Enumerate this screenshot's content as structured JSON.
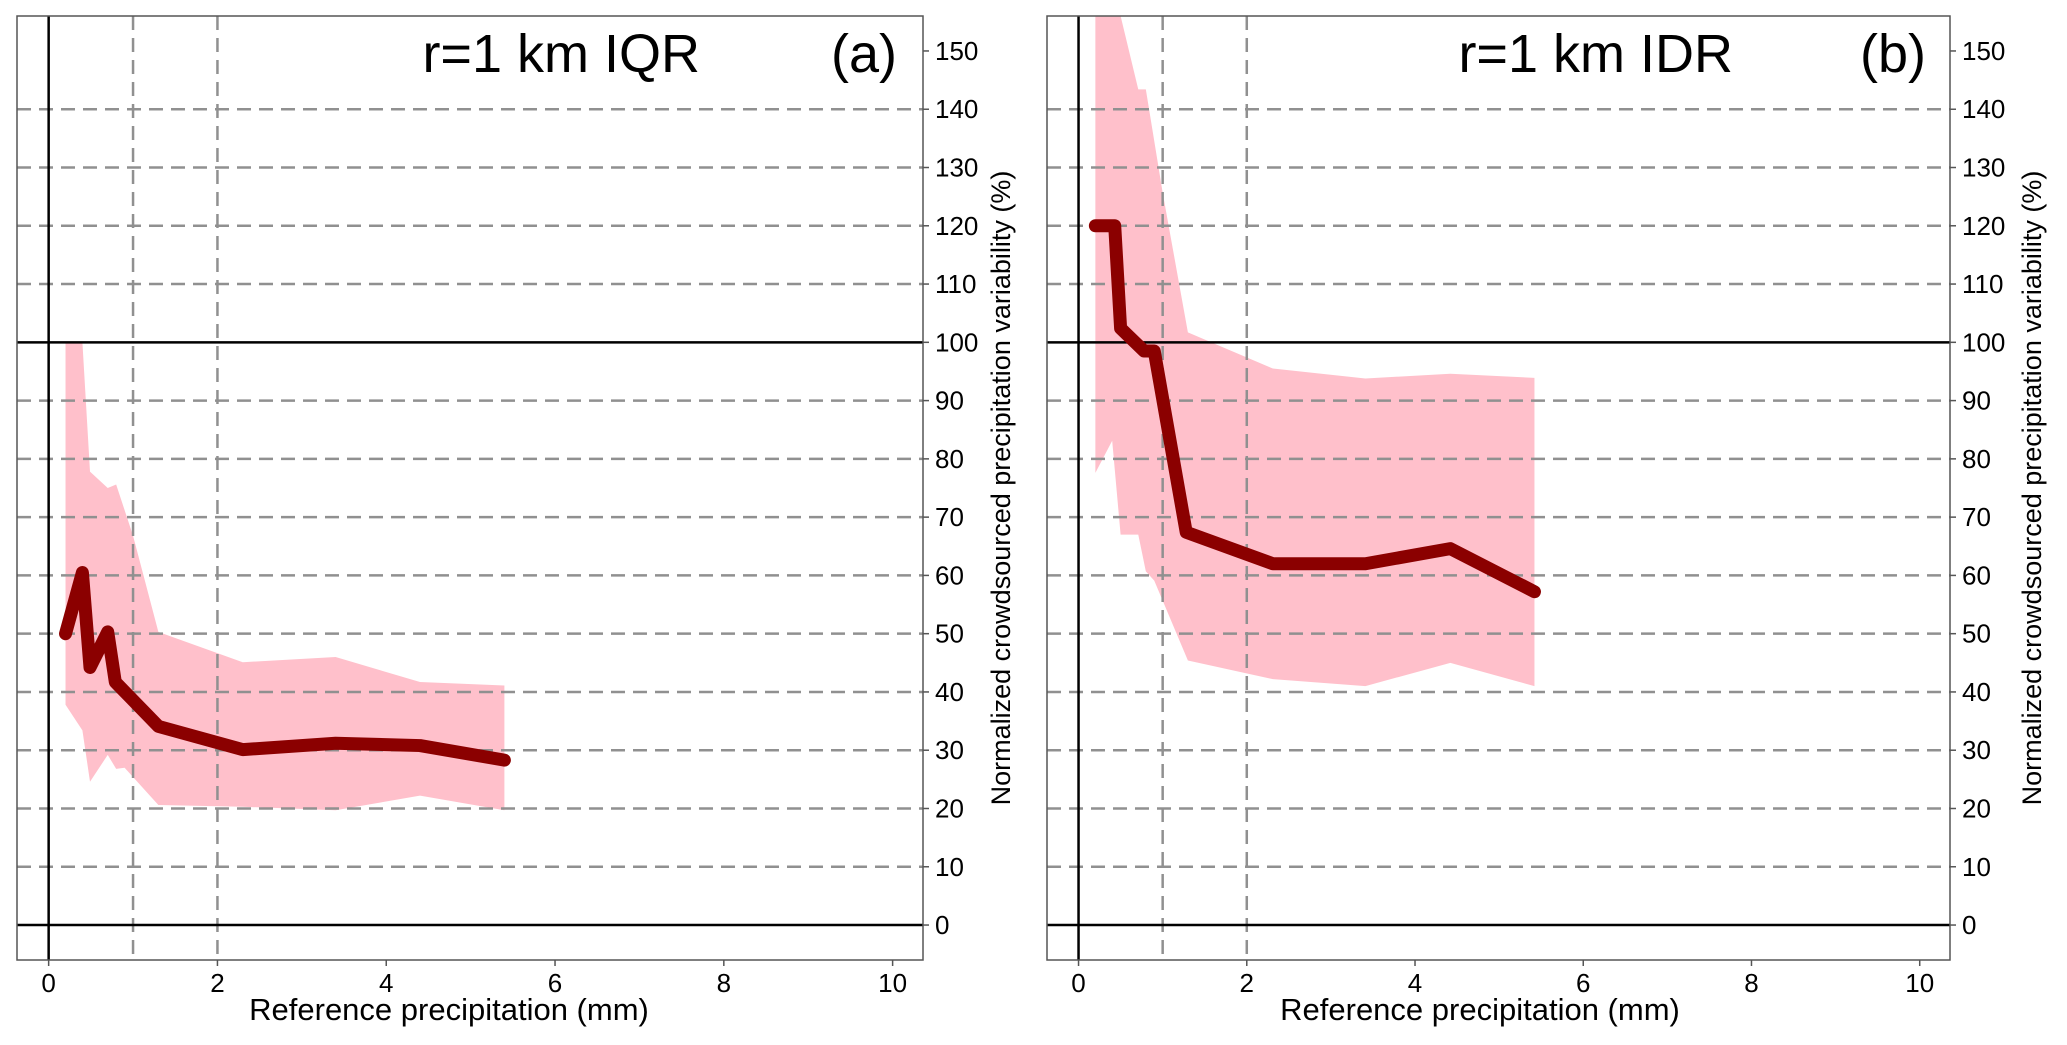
{
  "chart_data": [
    {
      "type": "line",
      "title": "r=1 km IQR",
      "panel_label": "(a)",
      "xlabel": "Reference precipitation (mm)",
      "ylabel": "Normalized crowdsourced precipitation variability (%)",
      "xlim": [
        -0.375,
        10.36
      ],
      "ylim": [
        -6,
        156
      ],
      "xticks": [
        0,
        2,
        4,
        6,
        8,
        10
      ],
      "yticks": [
        0,
        10,
        20,
        30,
        40,
        50,
        60,
        70,
        80,
        90,
        100,
        110,
        120,
        130,
        140,
        150
      ],
      "ygrid_dashed": [
        10,
        20,
        30,
        40,
        50,
        60,
        70,
        80,
        90,
        110,
        120,
        130,
        140
      ],
      "xgrid_dashed": [
        1,
        2
      ],
      "ref_lines": {
        "x": 0,
        "y": [
          0,
          100
        ]
      },
      "colors": {
        "line": "#8b0000",
        "band": "#ffc0cb",
        "grid": "#909090"
      },
      "median": {
        "x": [
          0.2,
          0.4,
          0.49,
          0.7,
          0.79,
          1.3,
          2.3,
          3.4,
          4.4,
          5.4
        ],
        "y": [
          50,
          60.5,
          44.2,
          50.3,
          41.7,
          34.1,
          30.1,
          31.2,
          30.8,
          28.3
        ]
      },
      "band_upper": {
        "x": [
          0.2,
          0.4,
          0.49,
          0.7,
          0.8,
          1.0,
          1.3,
          2.3,
          3.4,
          4.4,
          5.4
        ],
        "y": [
          100,
          100,
          77.8,
          75,
          75.6,
          66.8,
          50.3,
          45.1,
          46,
          41.7,
          41.1
        ]
      },
      "band_lower": {
        "x": [
          0.2,
          0.4,
          0.49,
          0.7,
          0.8,
          0.9,
          1.3,
          2.3,
          3.4,
          4.4,
          5.4
        ],
        "y": [
          37.8,
          33.4,
          24.6,
          29.2,
          26.8,
          27,
          20.6,
          20.3,
          19.7,
          22.2,
          19.7
        ]
      }
    },
    {
      "type": "line",
      "title": "r=1 km IDR",
      "panel_label": "(b)",
      "xlabel": "Reference precipitation (mm)",
      "ylabel": "Normalized crowdsourced precipitation variability (%)",
      "xlim": [
        -0.375,
        10.36
      ],
      "ylim": [
        -6,
        156
      ],
      "xticks": [
        0,
        2,
        4,
        6,
        8,
        10
      ],
      "yticks": [
        0,
        10,
        20,
        30,
        40,
        50,
        60,
        70,
        80,
        90,
        100,
        110,
        120,
        130,
        140,
        150
      ],
      "ygrid_dashed": [
        10,
        20,
        30,
        40,
        50,
        60,
        70,
        80,
        90,
        110,
        120,
        130,
        140
      ],
      "xgrid_dashed": [
        1,
        2
      ],
      "ref_lines": {
        "x": 0,
        "y": [
          0,
          100
        ]
      },
      "colors": {
        "line": "#8b0000",
        "band": "#ffc0cb",
        "grid": "#909090"
      },
      "median": {
        "x": [
          0.2,
          0.43,
          0.5,
          0.78,
          0.9,
          1.28,
          2.31,
          3.41,
          4.42,
          5.42
        ],
        "y": [
          120,
          120,
          102.4,
          98.5,
          98.5,
          67.4,
          62,
          62,
          64.6,
          57.2
        ]
      },
      "band_upper": {
        "x": [
          0.2,
          0.5,
          0.71,
          0.8,
          1.0,
          1.3,
          2.31,
          3.41,
          4.42,
          5.42
        ],
        "y": [
          156,
          156,
          143.4,
          143.4,
          125.7,
          101.7,
          95.5,
          93.8,
          94.6,
          93.9
        ]
      },
      "band_lower": {
        "x": [
          0.2,
          0.4,
          0.5,
          0.71,
          0.8,
          0.9,
          1.3,
          2.31,
          3.41,
          4.42,
          5.42
        ],
        "y": [
          77.6,
          83.1,
          67,
          67,
          60.7,
          59.1,
          45.4,
          42.2,
          41,
          45,
          41
        ]
      }
    }
  ]
}
